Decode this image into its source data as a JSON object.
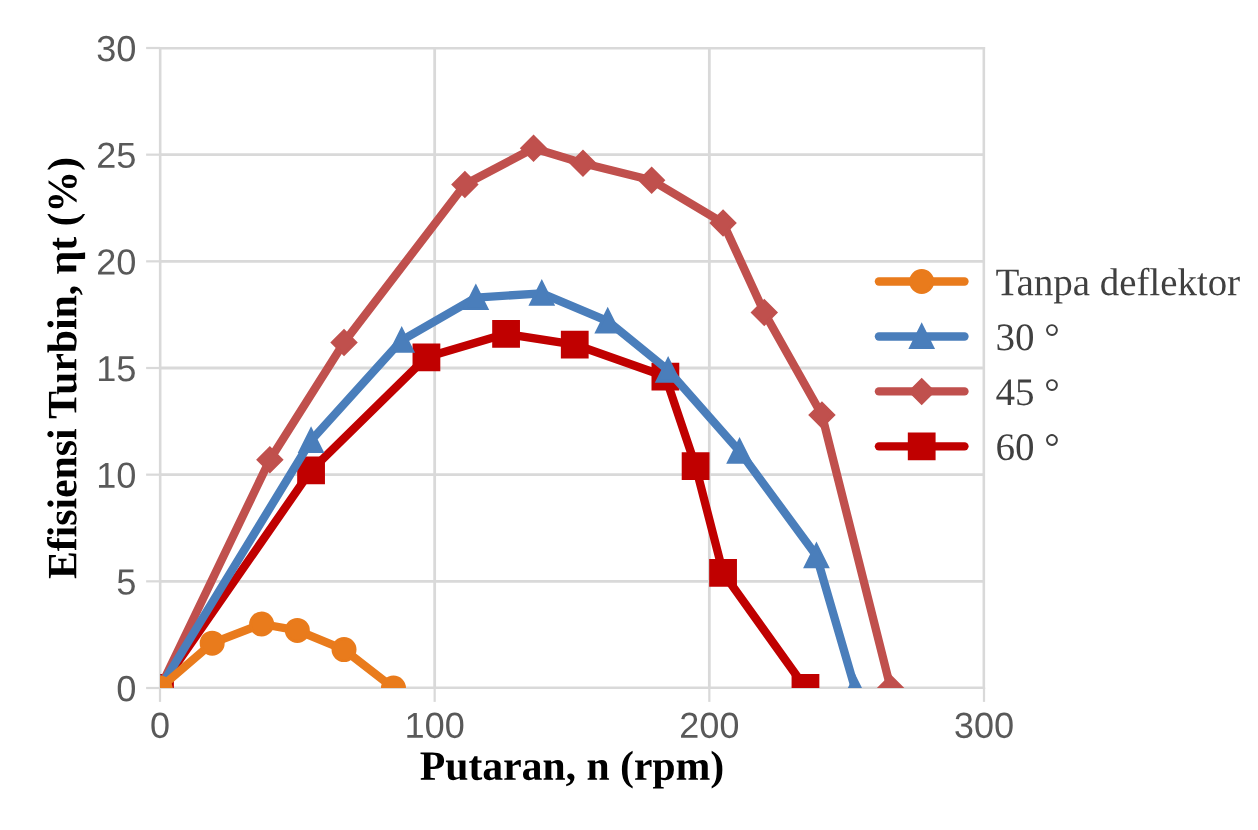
{
  "chart_data": {
    "type": "line",
    "xlabel": "Putaran, n (rpm)",
    "ylabel": "Efisiensi Turbin, ηt (%)",
    "xlim": [
      0,
      300
    ],
    "xticks": [
      0,
      100,
      200,
      300
    ],
    "ylim": [
      0,
      30
    ],
    "yticks": [
      0,
      5,
      10,
      15,
      20,
      25,
      30
    ],
    "grid": true,
    "legend": "right",
    "line_style": "solid",
    "series": [
      {
        "name": "Tanpa deflektor",
        "color": "#e97b1c",
        "marker": "circle",
        "x": [
          0,
          19,
          37,
          50,
          67,
          85
        ],
        "values": [
          0,
          2.1,
          3.0,
          2.7,
          1.8,
          0
        ]
      },
      {
        "name": "30 °",
        "color": "#4a7ebb",
        "marker": "triangle",
        "x": [
          0,
          55,
          88,
          115,
          139,
          163,
          185,
          211,
          239,
          253
        ],
        "values": [
          0,
          11.6,
          16.3,
          18.3,
          18.5,
          17.2,
          14.9,
          11.1,
          6.2,
          0
        ]
      },
      {
        "name": "45 °",
        "color": "#c0504d",
        "marker": "diamond",
        "x": [
          0,
          40,
          67,
          111,
          136,
          154,
          179,
          205,
          220,
          241,
          266
        ],
        "values": [
          0,
          10.7,
          16.2,
          23.6,
          25.3,
          24.6,
          23.8,
          21.8,
          17.6,
          12.8,
          0
        ]
      },
      {
        "name": "60 °",
        "color": "#c00000",
        "marker": "square",
        "x": [
          0,
          55,
          97,
          126,
          151,
          184,
          195,
          205,
          235
        ],
        "values": [
          0,
          10.2,
          15.5,
          16.6,
          16.1,
          14.6,
          10.4,
          5.4,
          0
        ]
      }
    ]
  }
}
